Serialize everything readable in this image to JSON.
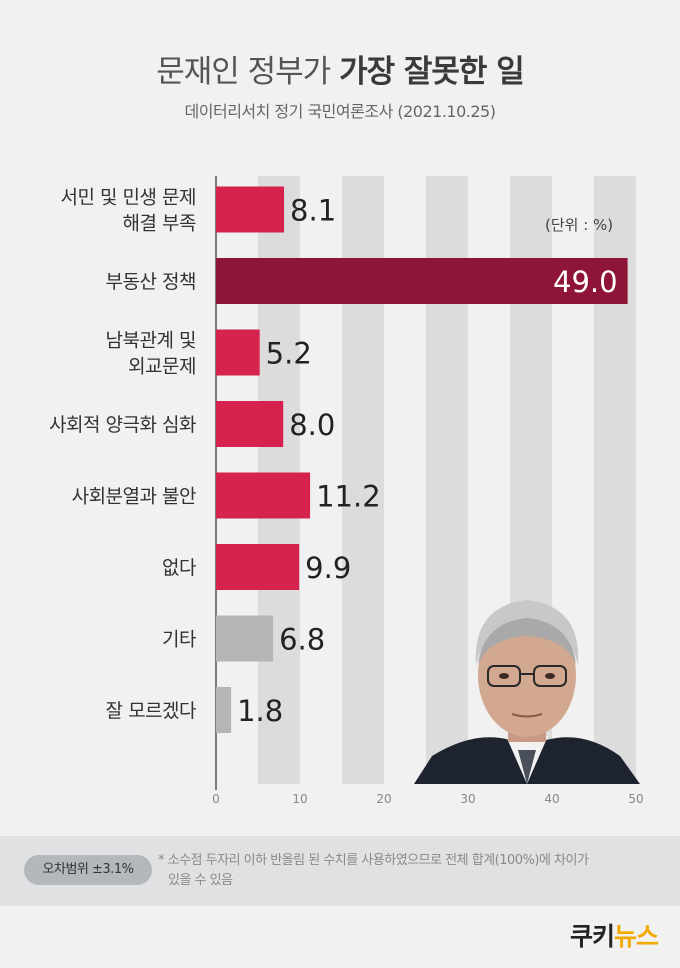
{
  "header": {
    "title_light": "문재인 정부가",
    "title_bold": "가장 잘못한 일",
    "subtitle": "데이터리서치 정기 국민여론조사 (2021.10.25)"
  },
  "unit_label": "(단위 : %)",
  "chart_data": {
    "type": "bar",
    "orientation": "horizontal",
    "categories": [
      [
        "서민 및 민생 문제",
        "해결 부족"
      ],
      [
        "부동산 정책"
      ],
      [
        "남북관계 및",
        "외교문제"
      ],
      [
        "사회적 양극화 심화"
      ],
      [
        "사회분열과 불안"
      ],
      [
        "없다"
      ],
      [
        "기타"
      ],
      [
        "잘 모르겠다"
      ]
    ],
    "values": [
      8.1,
      49.0,
      5.2,
      8.0,
      11.2,
      9.9,
      6.8,
      1.8
    ],
    "value_labels": [
      "8.1",
      "49.0",
      "5.2",
      "8.0",
      "11.2",
      "9.9",
      "6.8",
      "1.8"
    ],
    "bar_colors": [
      "#d5234e",
      "#8e1538",
      "#d5234e",
      "#d5234e",
      "#d5234e",
      "#d5234e",
      "#b5b5b5",
      "#b5b5b5"
    ],
    "xlim": [
      0,
      50
    ],
    "xticks": [
      0,
      10,
      20,
      30,
      40,
      50
    ],
    "grid": "alternating vertical bands",
    "band_color": "#dcdcdc"
  },
  "footer": {
    "margin_of_error": "오차범위 ±3.1%",
    "note_line1": "* 소수점 두자리 이하 반올림 된 수치를 사용하였으므로 전체 합계(100%)에 차이가",
    "note_line2": "있을 수 있음"
  },
  "logo": {
    "part1": "쿠키",
    "part2": "뉴스"
  }
}
